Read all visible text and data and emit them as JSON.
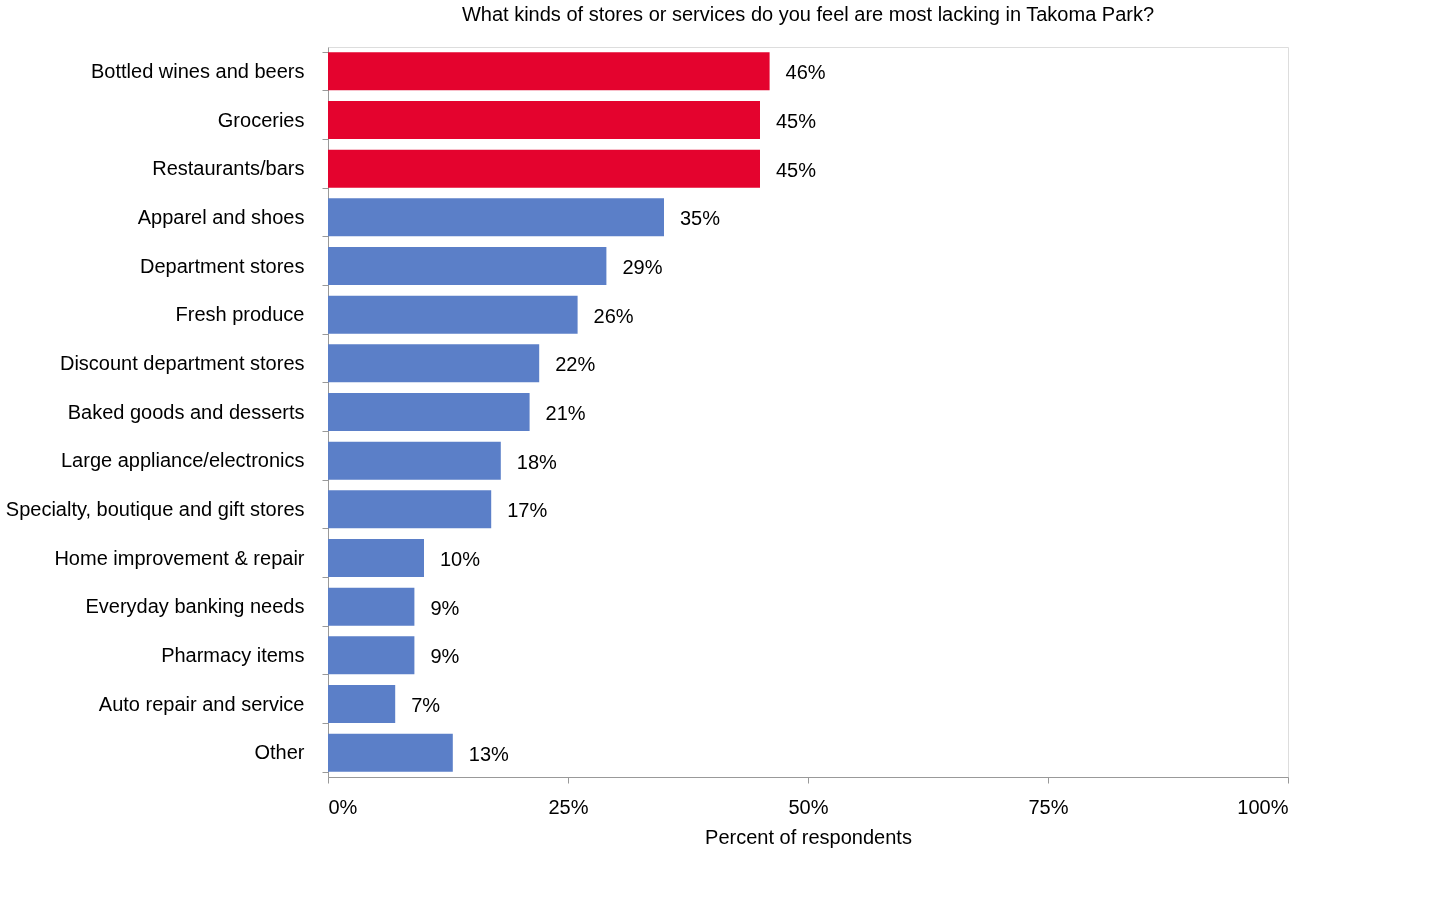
{
  "chart_data": {
    "type": "bar",
    "orientation": "horizontal",
    "title": "What kinds of stores or services do you feel are most lacking in Takoma Park?",
    "xlabel": "Percent of respondents",
    "categories": [
      "Bottled wines and beers",
      "Groceries",
      "Restaurants/bars",
      "Apparel and shoes",
      "Department stores",
      "Fresh produce",
      "Discount department stores",
      "Baked goods and desserts",
      "Large appliance/electronics",
      "Specialty, boutique and gift stores",
      "Home improvement & repair",
      "Everyday banking needs",
      "Pharmacy items",
      "Auto repair and service",
      "Other"
    ],
    "values": [
      46,
      45,
      45,
      35,
      29,
      26,
      22,
      21,
      18,
      17,
      10,
      9,
      9,
      7,
      13
    ],
    "colors": [
      "#e4032e",
      "#e4032e",
      "#e4032e",
      "#5b7fc8",
      "#5b7fc8",
      "#5b7fc8",
      "#5b7fc8",
      "#5b7fc8",
      "#5b7fc8",
      "#5b7fc8",
      "#5b7fc8",
      "#5b7fc8",
      "#5b7fc8",
      "#5b7fc8",
      "#5b7fc8"
    ],
    "value_labels": [
      "46%",
      "45%",
      "45%",
      "35%",
      "29%",
      "26%",
      "22%",
      "21%",
      "18%",
      "17%",
      "10%",
      "9%",
      "9%",
      "7%",
      "13%"
    ],
    "xlim": [
      0,
      100
    ],
    "xticks": [
      {
        "value": 0,
        "label": "0%"
      },
      {
        "value": 25,
        "label": "25%"
      },
      {
        "value": 50,
        "label": "50%"
      },
      {
        "value": 75,
        "label": "75%"
      },
      {
        "value": 100,
        "label": "100%"
      }
    ],
    "grid": false
  }
}
